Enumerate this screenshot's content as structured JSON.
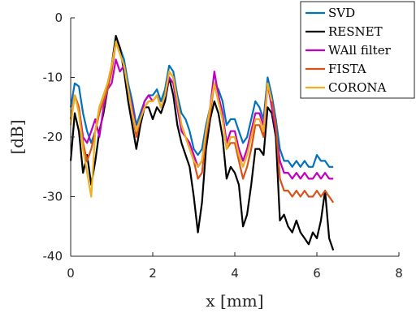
{
  "chart_data": {
    "type": "line",
    "xlabel": "x [mm]",
    "ylabel": "[dB]",
    "xlim": [
      0,
      8
    ],
    "ylim": [
      -40,
      0
    ],
    "xticks": [
      0,
      2,
      4,
      6,
      8
    ],
    "yticks": [
      0,
      -10,
      -20,
      -30,
      -40
    ],
    "grid": false,
    "legend_position": "top-right",
    "series": [
      {
        "name": "SVD",
        "color": "#0072BD",
        "x": [
          0,
          0.1,
          0.2,
          0.3,
          0.4,
          0.5,
          0.6,
          0.7,
          0.8,
          0.9,
          1.0,
          1.1,
          1.2,
          1.3,
          1.4,
          1.5,
          1.6,
          1.7,
          1.8,
          1.9,
          2.0,
          2.1,
          2.2,
          2.3,
          2.4,
          2.5,
          2.6,
          2.7,
          2.8,
          2.9,
          3.0,
          3.1,
          3.2,
          3.3,
          3.4,
          3.5,
          3.6,
          3.7,
          3.8,
          3.9,
          4.0,
          4.1,
          4.2,
          4.3,
          4.4,
          4.5,
          4.6,
          4.7,
          4.8,
          4.9,
          5.0,
          5.1,
          5.2,
          5.3,
          5.4,
          5.5,
          5.6,
          5.7,
          5.8,
          5.9,
          6.0,
          6.1,
          6.2,
          6.3,
          6.4
        ],
        "y": [
          -15,
          -11,
          -11.5,
          -16,
          -19,
          -21,
          -19,
          -15,
          -13,
          -11,
          -8,
          -4,
          -5,
          -7,
          -11,
          -14,
          -18,
          -16,
          -14,
          -13,
          -13,
          -12,
          -14,
          -12,
          -8,
          -9,
          -13,
          -16,
          -17,
          -19,
          -22,
          -23,
          -22,
          -18,
          -15,
          -11,
          -12,
          -14,
          -18,
          -17,
          -17,
          -19,
          -21,
          -20,
          -17,
          -14,
          -15,
          -17,
          -10,
          -13,
          -17,
          -22,
          -24,
          -24,
          -25,
          -24,
          -25,
          -24,
          -25,
          -25,
          -23,
          -24,
          -24,
          -25,
          -25
        ]
      },
      {
        "name": "RESNET",
        "color": "#000000",
        "x": [
          0,
          0.1,
          0.2,
          0.3,
          0.4,
          0.5,
          0.6,
          0.7,
          0.8,
          0.9,
          1.0,
          1.1,
          1.2,
          1.3,
          1.4,
          1.5,
          1.6,
          1.7,
          1.8,
          1.9,
          2.0,
          2.1,
          2.2,
          2.3,
          2.4,
          2.5,
          2.6,
          2.7,
          2.8,
          2.9,
          3.0,
          3.1,
          3.2,
          3.3,
          3.4,
          3.5,
          3.6,
          3.7,
          3.8,
          3.9,
          4.0,
          4.1,
          4.2,
          4.3,
          4.4,
          4.5,
          4.6,
          4.7,
          4.8,
          4.9,
          5.0,
          5.1,
          5.2,
          5.3,
          5.4,
          5.5,
          5.6,
          5.7,
          5.8,
          5.9,
          6.0,
          6.1,
          6.2,
          6.3,
          6.4
        ],
        "y": [
          -24,
          -16,
          -19,
          -26,
          -23,
          -28,
          -24,
          -19,
          -16,
          -12,
          -8,
          -3,
          -5,
          -9,
          -14,
          -18,
          -22,
          -18,
          -15,
          -15,
          -17,
          -15,
          -16,
          -14,
          -10,
          -13,
          -18,
          -21,
          -23,
          -25,
          -30,
          -36,
          -31,
          -22,
          -17,
          -14,
          -16,
          -20,
          -27,
          -25,
          -26,
          -28,
          -35,
          -33,
          -28,
          -22,
          -22,
          -23,
          -15,
          -16,
          -20,
          -34,
          -33,
          -35,
          -36,
          -34,
          -36,
          -37,
          -38,
          -36,
          -37,
          -34,
          -29,
          -37,
          -39
        ]
      },
      {
        "name": "WAll filter",
        "color": "#C000C0",
        "x": [
          0,
          0.1,
          0.2,
          0.3,
          0.4,
          0.5,
          0.6,
          0.7,
          0.8,
          0.9,
          1.0,
          1.1,
          1.2,
          1.3,
          1.4,
          1.5,
          1.6,
          1.7,
          1.8,
          1.9,
          2.0,
          2.1,
          2.2,
          2.3,
          2.4,
          2.5,
          2.6,
          2.7,
          2.8,
          2.9,
          3.0,
          3.1,
          3.2,
          3.3,
          3.4,
          3.5,
          3.6,
          3.7,
          3.8,
          3.9,
          4.0,
          4.1,
          4.2,
          4.3,
          4.4,
          4.5,
          4.6,
          4.7,
          4.8,
          4.9,
          5.0,
          5.1,
          5.2,
          5.3,
          5.4,
          5.5,
          5.6,
          5.7,
          5.8,
          5.9,
          6.0,
          6.1,
          6.2,
          6.3,
          6.4
        ],
        "y": [
          -17,
          -13,
          -15,
          -20,
          -21,
          -19,
          -17,
          -20,
          -15,
          -12,
          -11,
          -7,
          -9,
          -8,
          -12,
          -15,
          -19,
          -17,
          -14,
          -13,
          -14,
          -13,
          -15,
          -13,
          -10,
          -11,
          -15,
          -19,
          -20,
          -21,
          -23,
          -25,
          -24,
          -19,
          -15,
          -9,
          -13,
          -16,
          -21,
          -19,
          -19,
          -22,
          -24,
          -22,
          -19,
          -16,
          -16,
          -18,
          -11,
          -15,
          -19,
          -24,
          -26,
          -26,
          -27,
          -26,
          -27,
          -26,
          -27,
          -27,
          -26,
          -27,
          -26,
          -27,
          -27
        ]
      },
      {
        "name": "FISTA",
        "color": "#D95319",
        "x": [
          0,
          0.1,
          0.2,
          0.3,
          0.4,
          0.5,
          0.6,
          0.7,
          0.8,
          0.9,
          1.0,
          1.1,
          1.2,
          1.3,
          1.4,
          1.5,
          1.6,
          1.7,
          1.8,
          1.9,
          2.0,
          2.1,
          2.2,
          2.3,
          2.4,
          2.5,
          2.6,
          2.7,
          2.8,
          2.9,
          3.0,
          3.1,
          3.2,
          3.3,
          3.4,
          3.5,
          3.6,
          3.7,
          3.8,
          3.9,
          4.0,
          4.1,
          4.2,
          4.3,
          4.4,
          4.5,
          4.6,
          4.7,
          4.8,
          4.9,
          5.0,
          5.1,
          5.2,
          5.3,
          5.4,
          5.5,
          5.6,
          5.7,
          5.8,
          5.9,
          6.0,
          6.1,
          6.2,
          6.3,
          6.4
        ],
        "y": [
          -17,
          -13,
          -15,
          -21,
          -24,
          -22,
          -19,
          -16,
          -14,
          -12,
          -9,
          -4,
          -6,
          -8,
          -12,
          -16,
          -20,
          -17,
          -15,
          -14,
          -14,
          -13,
          -15,
          -13,
          -9,
          -10,
          -14,
          -18,
          -20,
          -22,
          -24,
          -27,
          -26,
          -20,
          -16,
          -11,
          -14,
          -17,
          -22,
          -21,
          -21,
          -24,
          -27,
          -25,
          -22,
          -18,
          -18,
          -20,
          -11,
          -14,
          -18,
          -27,
          -29,
          -29,
          -30,
          -29,
          -30,
          -29,
          -30,
          -30,
          -29,
          -30,
          -29,
          -30,
          -31
        ]
      },
      {
        "name": "CORONA",
        "color": "#EDB120",
        "x": [
          0,
          0.1,
          0.2,
          0.3,
          0.4,
          0.5,
          0.6,
          0.7,
          0.8,
          0.9,
          1.0,
          1.1,
          1.2,
          1.3,
          1.4,
          1.5,
          1.6,
          1.7,
          1.8,
          1.9,
          2.0,
          2.1,
          2.2,
          2.3,
          2.4,
          2.5,
          2.6,
          2.7,
          2.8,
          2.9,
          3.0,
          3.1,
          3.2,
          3.3,
          3.4,
          3.5,
          3.6,
          3.7,
          3.8,
          3.9,
          4.0,
          4.1,
          4.2,
          4.3,
          4.4,
          4.5,
          4.6,
          4.7,
          4.8,
          4.9
        ],
        "y": [
          -18,
          -13,
          -16,
          -22,
          -26,
          -30,
          -19,
          -15,
          -13,
          -11,
          -8,
          -4,
          -6,
          -8,
          -12,
          -16,
          -19,
          -17,
          -15,
          -14,
          -14,
          -13,
          -15,
          -13,
          -9,
          -10,
          -14,
          -18,
          -20,
          -22,
          -24,
          -25,
          -24,
          -19,
          -15,
          -11,
          -14,
          -17,
          -22,
          -20,
          -20,
          -23,
          -25,
          -23,
          -20,
          -17,
          -17,
          -19,
          -11,
          -14
        ]
      }
    ]
  }
}
